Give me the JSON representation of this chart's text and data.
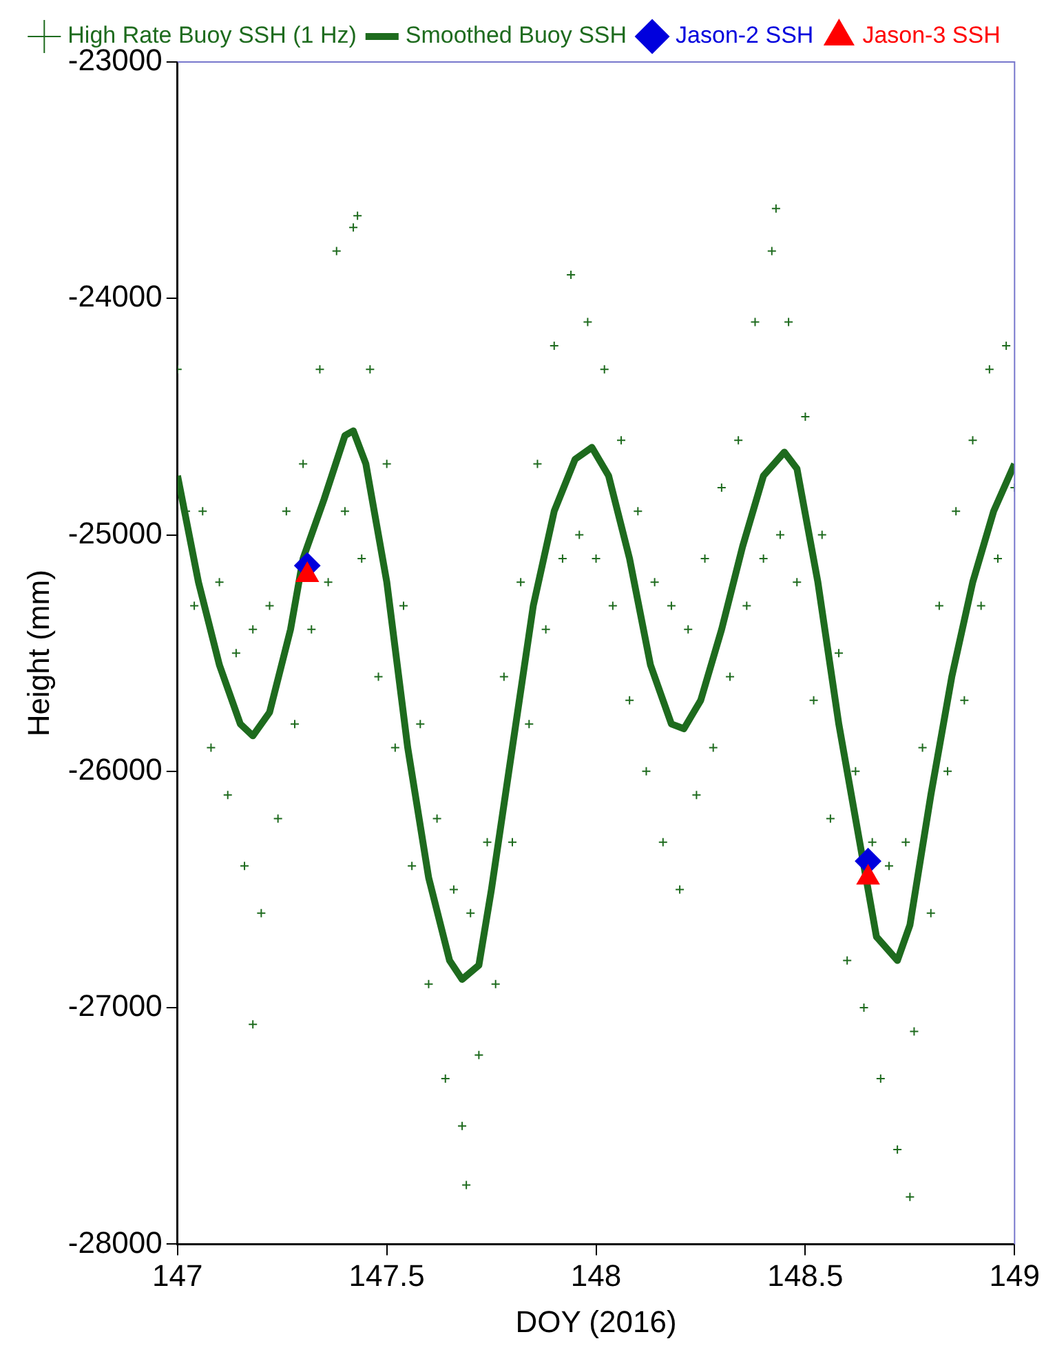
{
  "chart_data": {
    "type": "scatter",
    "xlabel": "DOY (2016)",
    "ylabel": "Height (mm)",
    "xlim": [
      147,
      149
    ],
    "xticks": [
      147,
      147.5,
      148,
      148.5,
      149
    ],
    "ylim": [
      -28000,
      -23000
    ],
    "yticks": [
      -28000,
      -27000,
      -26000,
      -25000,
      -24000,
      -23000
    ],
    "grid": false,
    "legend": "top",
    "series": [
      {
        "name": "High Rate Buoy SSH (1 Hz)",
        "type": "scatter",
        "marker": "cross",
        "color": "#1e6b1e",
        "x": [
          147,
          147.02,
          147.04,
          147.06,
          147.08,
          147.1,
          147.12,
          147.14,
          147.16,
          147.18,
          147.2,
          147.22,
          147.24,
          147.26,
          147.28,
          147.3,
          147.32,
          147.34,
          147.36,
          147.38,
          147.4,
          147.42,
          147.44,
          147.46,
          147.48,
          147.5,
          147.52,
          147.54,
          147.56,
          147.58,
          147.6,
          147.62,
          147.64,
          147.66,
          147.68,
          147.7,
          147.72,
          147.74,
          147.76,
          147.78,
          147.8,
          147.82,
          147.84,
          147.86,
          147.88,
          147.9,
          147.92,
          147.94,
          147.96,
          147.98,
          148,
          148.02,
          148.04,
          148.06,
          148.08,
          148.1,
          148.12,
          148.14,
          148.16,
          148.18,
          148.2,
          148.22,
          148.24,
          148.26,
          148.28,
          148.3,
          148.32,
          148.34,
          148.36,
          148.38,
          148.4,
          148.42,
          148.44,
          148.46,
          148.48,
          148.5,
          148.52,
          148.54,
          148.56,
          148.58,
          148.6,
          148.62,
          148.64,
          148.66,
          148.68,
          148.7,
          148.72,
          148.74,
          148.76,
          148.78,
          148.8,
          148.82,
          148.84,
          148.86,
          148.88,
          148.9,
          148.92,
          148.94,
          148.96,
          148.98,
          149,
          147.69,
          148.75,
          147.43,
          148.43,
          147.18
        ],
        "values": [
          -24300,
          -24900,
          -25300,
          -24900,
          -25900,
          -25200,
          -26100,
          -25500,
          -26400,
          -25400,
          -26600,
          -25300,
          -26200,
          -24900,
          -25800,
          -24700,
          -25400,
          -24300,
          -25200,
          -23800,
          -24900,
          -23700,
          -25100,
          -24300,
          -25600,
          -24700,
          -25900,
          -25300,
          -26400,
          -25800,
          -26900,
          -26200,
          -27300,
          -26500,
          -27500,
          -26600,
          -27200,
          -26300,
          -26900,
          -25600,
          -26300,
          -25200,
          -25800,
          -24700,
          -25400,
          -24200,
          -25100,
          -23900,
          -25000,
          -24100,
          -25100,
          -24300,
          -25300,
          -24600,
          -25700,
          -24900,
          -26000,
          -25200,
          -26300,
          -25300,
          -26500,
          -25400,
          -26100,
          -25100,
          -25900,
          -24800,
          -25600,
          -24600,
          -25300,
          -24100,
          -25100,
          -23800,
          -25000,
          -24100,
          -25200,
          -24500,
          -25700,
          -25000,
          -26200,
          -25500,
          -26800,
          -26000,
          -27000,
          -26300,
          -27300,
          -26400,
          -27600,
          -26300,
          -27100,
          -25900,
          -26600,
          -25300,
          -26000,
          -24900,
          -25700,
          -24600,
          -25300,
          -24300,
          -25100,
          -24200,
          -24800,
          -27750,
          -27800,
          -23650,
          -23620,
          -27070
        ]
      },
      {
        "name": "Smoothed Buoy SSH",
        "type": "line",
        "marker": "none",
        "line_style": "solid",
        "color": "#1e6b1e",
        "x": [
          147,
          147.05,
          147.1,
          147.15,
          147.18,
          147.22,
          147.27,
          147.3,
          147.35,
          147.4,
          147.42,
          147.45,
          147.5,
          147.55,
          147.6,
          147.65,
          147.68,
          147.72,
          147.75,
          147.8,
          147.85,
          147.9,
          147.95,
          147.99,
          148.03,
          148.08,
          148.13,
          148.18,
          148.21,
          148.25,
          148.3,
          148.35,
          148.4,
          148.45,
          148.48,
          148.53,
          148.58,
          148.63,
          148.67,
          148.72,
          148.75,
          148.8,
          148.85,
          148.9,
          148.95,
          149
        ],
        "values": [
          -24750,
          -25200,
          -25550,
          -25800,
          -25850,
          -25750,
          -25400,
          -25100,
          -24850,
          -24580,
          -24560,
          -24700,
          -25200,
          -25900,
          -26450,
          -26800,
          -26880,
          -26820,
          -26500,
          -25900,
          -25300,
          -24900,
          -24680,
          -24630,
          -24750,
          -25100,
          -25550,
          -25800,
          -25820,
          -25700,
          -25400,
          -25050,
          -24750,
          -24650,
          -24720,
          -25200,
          -25800,
          -26300,
          -26700,
          -26800,
          -26650,
          -26100,
          -25600,
          -25200,
          -24900,
          -24700
        ]
      },
      {
        "name": "Jason-2 SSH",
        "type": "scatter",
        "marker": "diamond",
        "color": "#0000dd",
        "x": [
          147.31,
          148.65
        ],
        "values": [
          -25130,
          -26380
        ]
      },
      {
        "name": "Jason-3 SSH",
        "type": "scatter",
        "marker": "triangle",
        "color": "#ff0000",
        "x": [
          147.31,
          148.65
        ],
        "values": [
          -25170,
          -26450
        ]
      }
    ]
  }
}
